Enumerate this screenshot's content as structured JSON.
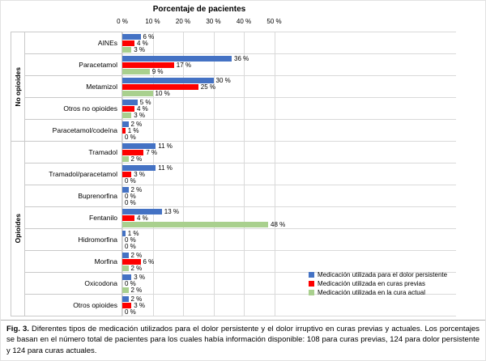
{
  "chart_data": {
    "type": "bar",
    "orientation": "horizontal",
    "title": "Porcentaje de pacientes",
    "xlabel": "Porcentaje de pacientes",
    "ylabel": "",
    "xlim": [
      0,
      50
    ],
    "x_ticks": [
      "0 %",
      "10 %",
      "20 %",
      "30 %",
      "40 %",
      "50 %"
    ],
    "grid": "vertical",
    "legend_position": "bottom-right",
    "groups": [
      {
        "name": "No opioides",
        "categories": [
          "AINEs",
          "Paracetamol",
          "Metamizol",
          "Otros no opioides",
          "Paracetamol/codeína"
        ]
      },
      {
        "name": "Opioides",
        "categories": [
          "Tramadol",
          "Tramadol/paracetamol",
          "Buprenorfina",
          "Fentanilo",
          "Hidromorfina",
          "Morfina",
          "Oxicodona",
          "Otros opioides"
        ]
      }
    ],
    "series": [
      {
        "name": "Medicación utilizada para el dolor persistente",
        "color": "#4472C4",
        "values": [
          6,
          36,
          30,
          5,
          2,
          11,
          11,
          2,
          13,
          1,
          2,
          3,
          2
        ]
      },
      {
        "name": "Medicación utilizada en curas previas",
        "color": "#FE0000",
        "values": [
          4,
          17,
          25,
          4,
          1,
          7,
          3,
          0,
          4,
          0,
          6,
          0,
          3
        ]
      },
      {
        "name": "Medicación utilizada en la cura actual",
        "color": "#A9D08E",
        "values": [
          3,
          9,
          10,
          3,
          0,
          2,
          0,
          0,
          48,
          0,
          2,
          2,
          0
        ]
      }
    ],
    "value_label_suffix": " %"
  },
  "caption": {
    "label": "Fig. 3.",
    "text": " Diferentes tipos de medicación utilizados para el dolor persistente y el dolor irruptivo en curas previas y actuales. Los porcentajes se basan en el número total de pacientes para los cuales había información disponible: 108 para curas previas, 124 para dolor persistente y 124 para curas actuales."
  }
}
